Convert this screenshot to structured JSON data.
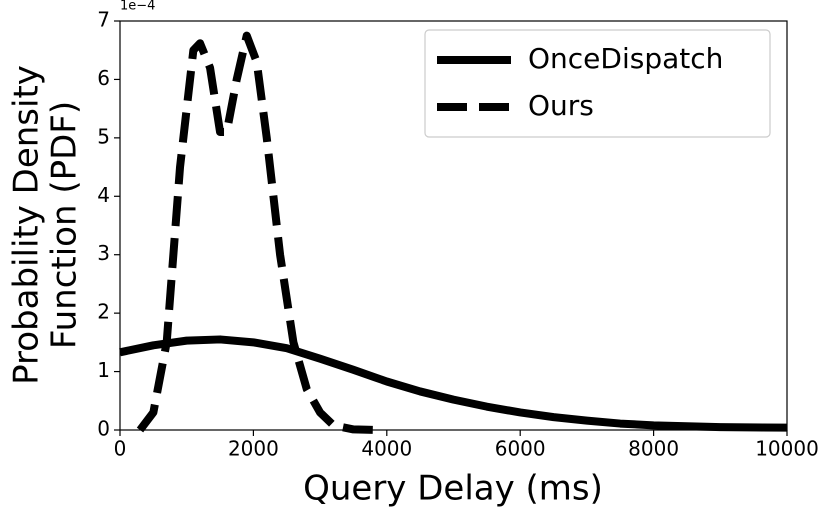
{
  "chart_data": {
    "type": "line",
    "xlabel": "Query Delay (ms)",
    "ylabel": [
      "Probability Density",
      "Function (PDF)"
    ],
    "y_offset_label": "1e−4",
    "xlim": [
      0,
      10000
    ],
    "xticks": [
      0,
      2000,
      4000,
      6000,
      8000,
      10000
    ],
    "ylim": [
      0,
      7
    ],
    "yticks": [
      0,
      1,
      2,
      3,
      4,
      5,
      6,
      7
    ],
    "legend_position": "upper right",
    "series": [
      {
        "name": "OnceDispatch",
        "color": "#000000",
        "linestyle": "solid",
        "x": [
          0,
          500,
          1000,
          1500,
          2000,
          2500,
          3000,
          3500,
          4000,
          4500,
          5000,
          5500,
          6000,
          6500,
          7000,
          7500,
          8000,
          9000,
          10000
        ],
        "values": [
          1.33,
          1.45,
          1.53,
          1.55,
          1.5,
          1.4,
          1.22,
          1.03,
          0.83,
          0.66,
          0.52,
          0.4,
          0.3,
          0.22,
          0.16,
          0.11,
          0.08,
          0.05,
          0.04
        ]
      },
      {
        "name": "Ours",
        "color": "#000000",
        "linestyle": "dashed",
        "x": [
          300,
          500,
          700,
          900,
          1100,
          1200,
          1350,
          1500,
          1600,
          1750,
          1900,
          2050,
          2200,
          2400,
          2600,
          2800,
          3000,
          3200,
          3500,
          3900
        ],
        "values": [
          0,
          0.3,
          1.5,
          4.5,
          6.5,
          6.62,
          6.2,
          5.1,
          5.1,
          6.0,
          6.75,
          6.3,
          5.0,
          3.0,
          1.5,
          0.7,
          0.3,
          0.08,
          0.01,
          0
        ]
      }
    ]
  }
}
